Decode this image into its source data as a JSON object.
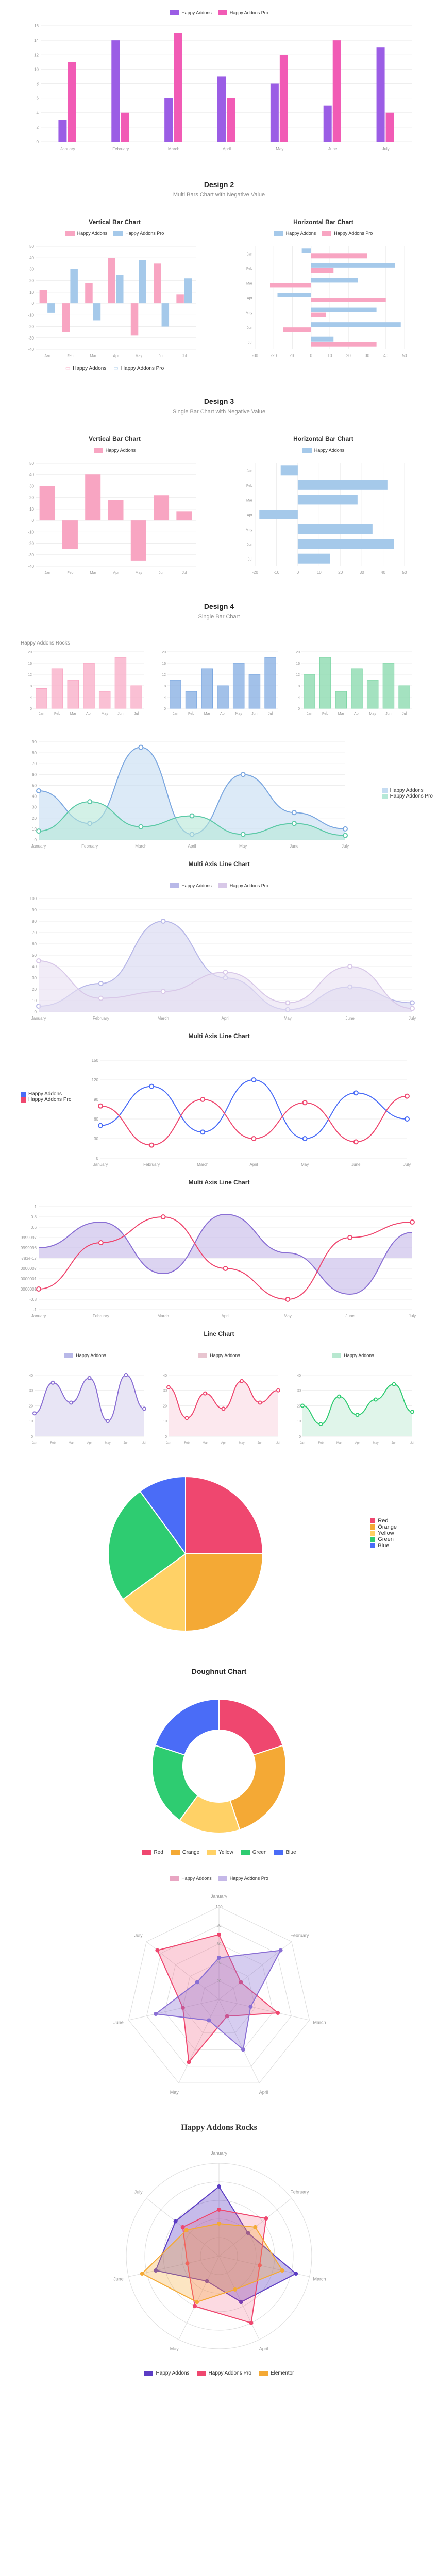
{
  "chart1": {
    "type": "grouped-bar",
    "legend": [
      {
        "label": "Happy Addons",
        "color": "#9b5de5"
      },
      {
        "label": "Happy Addons Pro",
        "color": "#f15bb5"
      }
    ],
    "categories": [
      "January",
      "February",
      "March",
      "April",
      "May",
      "June",
      "July"
    ],
    "series": [
      {
        "color": "#9b5de5",
        "values": [
          3,
          14,
          6,
          9,
          8,
          5,
          13
        ]
      },
      {
        "color": "#f15bb5",
        "values": [
          11,
          4,
          15,
          6,
          12,
          14,
          4
        ]
      }
    ],
    "ylim": [
      0,
      16
    ],
    "ytick_step": 2,
    "bar_width": 0.35
  },
  "design2": {
    "title": "Design 2",
    "subtitle": "Multi Bars Chart with Negative Value"
  },
  "chart2a": {
    "title": "Vertical Bar Chart",
    "legend": [
      {
        "label": "Happy Addons",
        "color": "#f8a5c2"
      },
      {
        "label": "Happy Addons Pro",
        "color": "#a5c9ea"
      }
    ],
    "categories": [
      "January",
      "February",
      "March",
      "April",
      "May",
      "June",
      "July"
    ],
    "series": [
      {
        "color": "#f8a5c2",
        "values": [
          12,
          -25,
          18,
          40,
          -28,
          35,
          8
        ]
      },
      {
        "color": "#a5c9ea",
        "values": [
          -8,
          30,
          -15,
          25,
          38,
          -20,
          22
        ]
      }
    ],
    "ylim": [
      -40,
      50
    ],
    "ytick_step": 10
  },
  "chart2b": {
    "title": "Horizontal Bar Chart",
    "legend": [
      {
        "label": "Happy Addons",
        "color": "#a5c9ea"
      },
      {
        "label": "Happy Addons Pro",
        "color": "#f8a5c2"
      }
    ],
    "categories": [
      "January",
      "February",
      "March",
      "April",
      "May",
      "June",
      "July"
    ],
    "series": [
      {
        "color": "#a5c9ea",
        "values": [
          -5,
          45,
          25,
          -18,
          35,
          48,
          12
        ]
      },
      {
        "color": "#f8a5c2",
        "values": [
          30,
          12,
          -22,
          40,
          8,
          -15,
          35
        ]
      }
    ],
    "xlim": [
      -30,
      50
    ],
    "xtick_step": 10
  },
  "design3": {
    "title": "Design 3",
    "subtitle": "Single Bar Chart with Negative Value"
  },
  "chart3a": {
    "title": "Vertical Bar Chart",
    "legend": [
      {
        "label": "Happy Addons",
        "color": "#f8a5c2"
      }
    ],
    "categories": [
      "January",
      "February",
      "March",
      "April",
      "May",
      "June",
      "July"
    ],
    "values": [
      30,
      -25,
      40,
      18,
      -35,
      22,
      8
    ],
    "color": "#f8a5c2",
    "ylim": [
      -40,
      50
    ],
    "ytick_step": 10
  },
  "chart3b": {
    "title": "Horizontal Bar Chart",
    "legend": [
      {
        "label": "Happy Addons",
        "color": "#a5c9ea"
      }
    ],
    "categories": [
      "January",
      "February",
      "March",
      "April",
      "May",
      "June",
      "July"
    ],
    "values": [
      -8,
      42,
      28,
      -18,
      35,
      45,
      15
    ],
    "color": "#a5c9ea",
    "xlim": [
      -20,
      50
    ],
    "xtick_step": 10
  },
  "design4": {
    "title": "Design 4",
    "subtitle": "Single Bar Chart"
  },
  "chart4": {
    "title": "Happy Addons Rocks",
    "categories": [
      "Jan",
      "Feb",
      "Mar",
      "Apr",
      "May",
      "Jun",
      "Jul"
    ],
    "series": [
      {
        "color": "#f8a5c2",
        "values": [
          7,
          14,
          10,
          16,
          6,
          18,
          8
        ]
      },
      {
        "color": "#7ba7e0",
        "values": [
          10,
          6,
          14,
          8,
          16,
          12,
          18
        ]
      },
      {
        "color": "#7ed6a5",
        "values": [
          12,
          18,
          6,
          14,
          10,
          16,
          8
        ]
      }
    ],
    "ylim": [
      0,
      20
    ],
    "ytick_step": 2
  },
  "chart5": {
    "type": "area",
    "categories": [
      "January",
      "February",
      "March",
      "April",
      "May",
      "June",
      "July"
    ],
    "series": [
      {
        "label": "Happy Addons",
        "color": "#7ba7e0",
        "fill": "#c5dcf2",
        "values": [
          45,
          15,
          85,
          5,
          60,
          25,
          10
        ]
      },
      {
        "label": "Happy Addons Pro",
        "color": "#5cc9a7",
        "fill": "#b5e8d7",
        "values": [
          8,
          35,
          12,
          22,
          5,
          15,
          4
        ]
      }
    ],
    "ylim": [
      0,
      90
    ],
    "ytick_step": 10
  },
  "chart6": {
    "title": "Multi Axis Line Chart",
    "legend": [
      {
        "label": "Happy Addons",
        "color": "#b8b8e8"
      },
      {
        "label": "Happy Addons Pro",
        "color": "#d8c8e8"
      }
    ],
    "categories": [
      "January",
      "February",
      "March",
      "April",
      "May",
      "June",
      "July"
    ],
    "series": [
      {
        "color": "#b8b8e8",
        "fill": "#d5d5f0",
        "values": [
          5,
          25,
          80,
          30,
          2,
          22,
          8
        ]
      },
      {
        "color": "#d8c8e8",
        "fill": "#e8dff2",
        "values": [
          45,
          12,
          18,
          35,
          8,
          40,
          3
        ]
      }
    ],
    "ylim": [
      0,
      100
    ],
    "ytick_step": 10
  },
  "chart7": {
    "title": "Multi Axis Line Chart",
    "legend_left": [
      {
        "label": "Happy Addons",
        "color": "#4a6cf7"
      },
      {
        "label": "Happy Addons Pro",
        "color": "#ef476f"
      }
    ],
    "categories": [
      "January",
      "February",
      "March",
      "April",
      "May",
      "June",
      "July"
    ],
    "series": [
      {
        "color": "#4a6cf7",
        "values": [
          50,
          110,
          40,
          120,
          30,
          100,
          60
        ],
        "marker": true
      },
      {
        "color": "#ef476f",
        "values": [
          80,
          20,
          90,
          30,
          85,
          25,
          95
        ],
        "marker": true
      }
    ],
    "ylim": [
      0,
      150
    ],
    "ytick_step": 30
  },
  "chart8": {
    "title": "Multi Axis Line Chart",
    "categories": [
      "January",
      "February",
      "March",
      "April",
      "May",
      "June",
      "July"
    ],
    "series": [
      {
        "color": "#8a6fd4",
        "fill": "#c5b8e8",
        "values": [
          0.2,
          0.7,
          -0.3,
          0.85,
          0.1,
          -0.7,
          0.5
        ]
      },
      {
        "color": "#ef476f",
        "fill": "none",
        "values": [
          -0.6,
          0.3,
          0.8,
          -0.2,
          -0.8,
          0.4,
          0.7
        ],
        "marker": true
      }
    ],
    "ylim": [
      -1,
      1
    ],
    "ytick_step": 0.2
  },
  "chart9": {
    "title": "Line Chart",
    "charts": [
      {
        "legend": "Happy Addons",
        "legend_color": "#b8b8e8",
        "color": "#8a6fd4",
        "fill": "#e8e5f5",
        "cats": [
          "January",
          "February",
          "March",
          "April",
          "May",
          "June",
          "July"
        ],
        "values": [
          15,
          35,
          22,
          38,
          10,
          40,
          18
        ],
        "ylim": [
          0,
          45
        ]
      },
      {
        "legend": "Happy Addons",
        "legend_color": "#e8c5d0",
        "color": "#ef476f",
        "fill": "#fce8ee",
        "cats": [
          "January",
          "February",
          "March",
          "April",
          "May",
          "June",
          "July"
        ],
        "values": [
          32,
          12,
          28,
          18,
          36,
          22,
          30
        ],
        "ylim": [
          0,
          45
        ]
      },
      {
        "legend": "Happy Addons",
        "legend_color": "#b8e8d0",
        "color": "#2ecc71",
        "fill": "#e0f5ea",
        "cats": [
          "January",
          "February",
          "March",
          "April",
          "May",
          "June",
          "July"
        ],
        "values": [
          20,
          8,
          26,
          14,
          24,
          34,
          16
        ],
        "ylim": [
          0,
          45
        ]
      }
    ]
  },
  "pie": {
    "slices": [
      {
        "label": "Red",
        "color": "#ef476f",
        "value": 25
      },
      {
        "label": "Orange",
        "color": "#f4a935",
        "value": 25
      },
      {
        "label": "Yellow",
        "color": "#ffd166",
        "value": 15
      },
      {
        "label": "Green",
        "color": "#2ecc71",
        "value": 25
      },
      {
        "label": "Blue",
        "color": "#4a6cf7",
        "value": 10
      }
    ]
  },
  "doughnut": {
    "title": "Doughnut Chart",
    "slices": [
      {
        "label": "Red",
        "color": "#ef476f",
        "value": 20
      },
      {
        "label": "Orange",
        "color": "#f4a935",
        "value": 25
      },
      {
        "label": "Yellow",
        "color": "#ffd166",
        "value": 15
      },
      {
        "label": "Green",
        "color": "#2ecc71",
        "value": 20
      },
      {
        "label": "Blue",
        "color": "#4a6cf7",
        "value": 20
      }
    ]
  },
  "radar1": {
    "legend": [
      {
        "label": "Happy Addons",
        "color": "#e8a5c2"
      },
      {
        "label": "Happy Addons Pro",
        "color": "#c5b8e8"
      }
    ],
    "axes": [
      "January",
      "February",
      "March",
      "April",
      "May",
      "June",
      "July"
    ],
    "series": [
      {
        "color": "#ef476f",
        "fill": "rgba(239,71,111,0.25)",
        "values": [
          70,
          30,
          65,
          20,
          75,
          40,
          85
        ]
      },
      {
        "color": "#8a6fd4",
        "fill": "rgba(138,111,212,0.35)",
        "values": [
          45,
          85,
          35,
          60,
          25,
          70,
          30
        ]
      }
    ],
    "max": 100
  },
  "radar2": {
    "title": "Happy Addons Rocks",
    "axes": [
      "January",
      "February",
      "March",
      "April",
      "May",
      "June",
      "July"
    ],
    "series": [
      {
        "label": "Happy Addons",
        "color": "#5b3cc4",
        "fill": "rgba(91,60,196,0.35)",
        "values": [
          75,
          40,
          85,
          55,
          30,
          70,
          60
        ]
      },
      {
        "label": "Happy Addons Pro",
        "color": "#ef476f",
        "fill": "rgba(239,71,111,0.2)",
        "values": [
          50,
          65,
          45,
          80,
          60,
          35,
          50
        ]
      },
      {
        "label": "Elementor",
        "color": "#f4a935",
        "fill": "rgba(244,169,53,0.3)",
        "values": [
          35,
          50,
          70,
          40,
          55,
          85,
          45
        ]
      }
    ],
    "max": 100
  }
}
